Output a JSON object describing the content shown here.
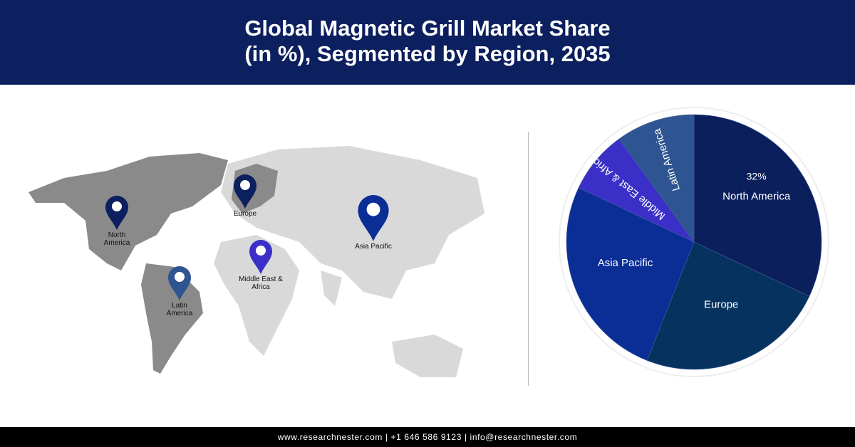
{
  "header": {
    "title_line1": "Global Magnetic Grill Market Share",
    "title_line2": "(in %), Segmented by Region, 2035",
    "background": "#0c1f5e"
  },
  "map": {
    "pins": [
      {
        "label": [
          "North",
          "America"
        ],
        "color": "#0c1f5e"
      },
      {
        "label": [
          "Europe"
        ],
        "color": "#0c1f5e"
      },
      {
        "label": [
          "Asia Pacific"
        ],
        "color": "#0a2d96"
      },
      {
        "label": [
          "Middle East &",
          "Africa"
        ],
        "color": "#3a30c8"
      },
      {
        "label": [
          "Latin",
          "America"
        ],
        "color": "#2e5591"
      }
    ]
  },
  "chart_data": {
    "type": "pie",
    "title": "Global Magnetic Grill Market Share (in %), Segmented by Region, 2035",
    "start": "top, clockwise",
    "slices": [
      {
        "name": "North America",
        "value": 32,
        "label": "32%",
        "color": "#0b1f5c"
      },
      {
        "name": "Europe",
        "value": 24,
        "color": "#06325f"
      },
      {
        "name": "Asia Pacific",
        "value": 26,
        "color": "#0a2d96"
      },
      {
        "name": "Middle East & Africa",
        "value": 8,
        "color": "#3a30c8"
      },
      {
        "name": "Latin America",
        "value": 10,
        "color": "#2e5591"
      }
    ]
  },
  "footer": {
    "text": "www.researchnester.com  |  +1 646 586 9123  |  info@researchnester.com"
  }
}
